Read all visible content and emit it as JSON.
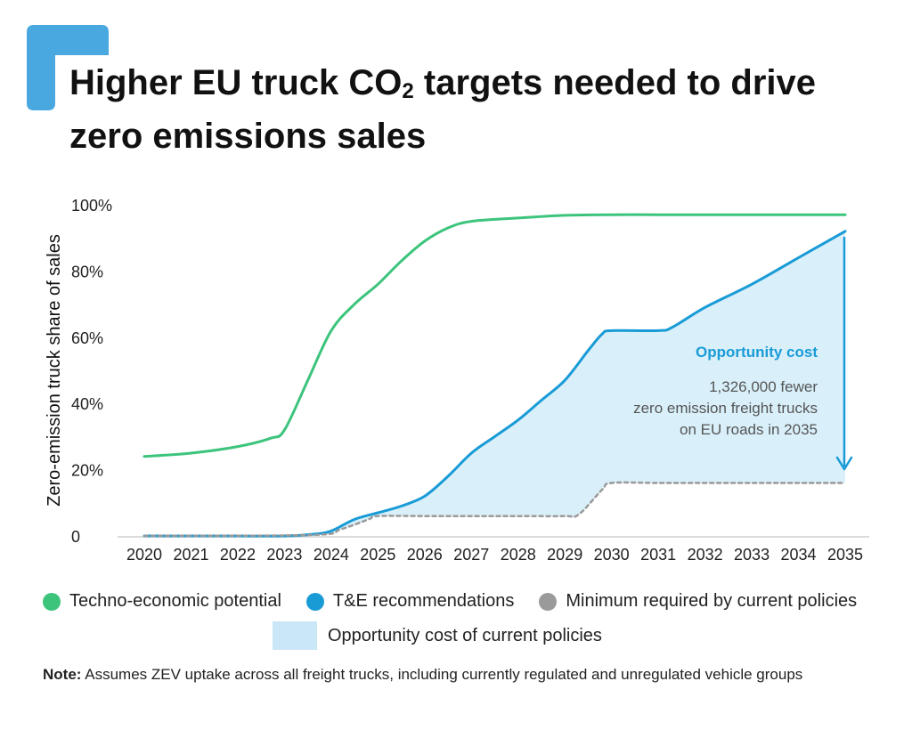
{
  "title": {
    "prefix": "Higher EU truck CO",
    "subscript": "2",
    "suffix": " targets needed to drive zero emissions sales"
  },
  "colors": {
    "accent_mark": "#4aa8e0",
    "techno": "#3cc47c",
    "te": "#199bd6",
    "policy": "#9a9a9a",
    "opportunity_fill": "#d9f0fa",
    "opportunity_text": "#1a9bd7"
  },
  "chart_data": {
    "type": "line",
    "ylabel": "Zero-emission truck share of sales",
    "yticks": [
      "0",
      "20%",
      "40%",
      "60%",
      "80%",
      "100%"
    ],
    "ylim": [
      0,
      100
    ],
    "xlim": [
      2020,
      2035
    ],
    "categories": [
      "2020",
      "2021",
      "2022",
      "2023",
      "2024",
      "2025",
      "2026",
      "2027",
      "2028",
      "2029",
      "2030",
      "2031",
      "2032",
      "2033",
      "2034",
      "2035"
    ],
    "series": [
      {
        "name": "Techno-economic potential",
        "color": "#3cc47c",
        "points": [
          [
            2020,
            24
          ],
          [
            2021,
            25
          ],
          [
            2022,
            27
          ],
          [
            2022.7,
            29.5
          ],
          [
            2023,
            32
          ],
          [
            2023.5,
            47
          ],
          [
            2024,
            62
          ],
          [
            2024.5,
            70
          ],
          [
            2025,
            76
          ],
          [
            2025.5,
            83
          ],
          [
            2026,
            89
          ],
          [
            2026.5,
            93
          ],
          [
            2027,
            95
          ],
          [
            2028,
            96
          ],
          [
            2029,
            96.8
          ],
          [
            2030,
            97
          ],
          [
            2031,
            97
          ],
          [
            2032,
            97
          ],
          [
            2033,
            97
          ],
          [
            2034,
            97
          ],
          [
            2035,
            97
          ]
        ]
      },
      {
        "name": "T&E recommendations",
        "color": "#199bd6",
        "points": [
          [
            2020,
            0
          ],
          [
            2021,
            0
          ],
          [
            2022,
            0
          ],
          [
            2023,
            0
          ],
          [
            2023.6,
            0.5
          ],
          [
            2024,
            1.5
          ],
          [
            2024.5,
            5
          ],
          [
            2025,
            7
          ],
          [
            2025.5,
            9
          ],
          [
            2026,
            12
          ],
          [
            2026.5,
            18
          ],
          [
            2027,
            25
          ],
          [
            2027.5,
            30
          ],
          [
            2028,
            35
          ],
          [
            2028.5,
            41
          ],
          [
            2029,
            47
          ],
          [
            2029.5,
            56
          ],
          [
            2029.8,
            61
          ],
          [
            2030,
            62
          ],
          [
            2031,
            62
          ],
          [
            2031.3,
            63
          ],
          [
            2032,
            69
          ],
          [
            2033,
            76
          ],
          [
            2034,
            84
          ],
          [
            2035,
            92
          ]
        ]
      },
      {
        "name": "Minimum required by current policies",
        "color": "#9a9a9a",
        "dashed": true,
        "points": [
          [
            2020,
            0
          ],
          [
            2023.6,
            0.3
          ],
          [
            2024.2,
            2
          ],
          [
            2024.8,
            5
          ],
          [
            2025,
            6
          ],
          [
            2026,
            6
          ],
          [
            2027,
            6
          ],
          [
            2028,
            6
          ],
          [
            2029,
            6
          ],
          [
            2029.3,
            6.5
          ],
          [
            2029.8,
            14
          ],
          [
            2030,
            16
          ],
          [
            2031,
            16
          ],
          [
            2032,
            16
          ],
          [
            2033,
            16
          ],
          [
            2034,
            16
          ],
          [
            2035,
            16
          ]
        ]
      }
    ],
    "annotation": {
      "heading": "Opportunity cost",
      "lines": [
        "1,326,000 fewer",
        "zero emission freight trucks",
        "on EU roads in 2035"
      ]
    }
  },
  "legend": {
    "techno": "Techno-economic potential",
    "te": "T&E recommendations",
    "policy": "Minimum required by current policies",
    "opportunity": "Opportunity cost of current policies"
  },
  "note": {
    "label": "Note:",
    "text": " Assumes ZEV uptake across all freight trucks, including currently regulated and unregulated vehicle groups"
  }
}
